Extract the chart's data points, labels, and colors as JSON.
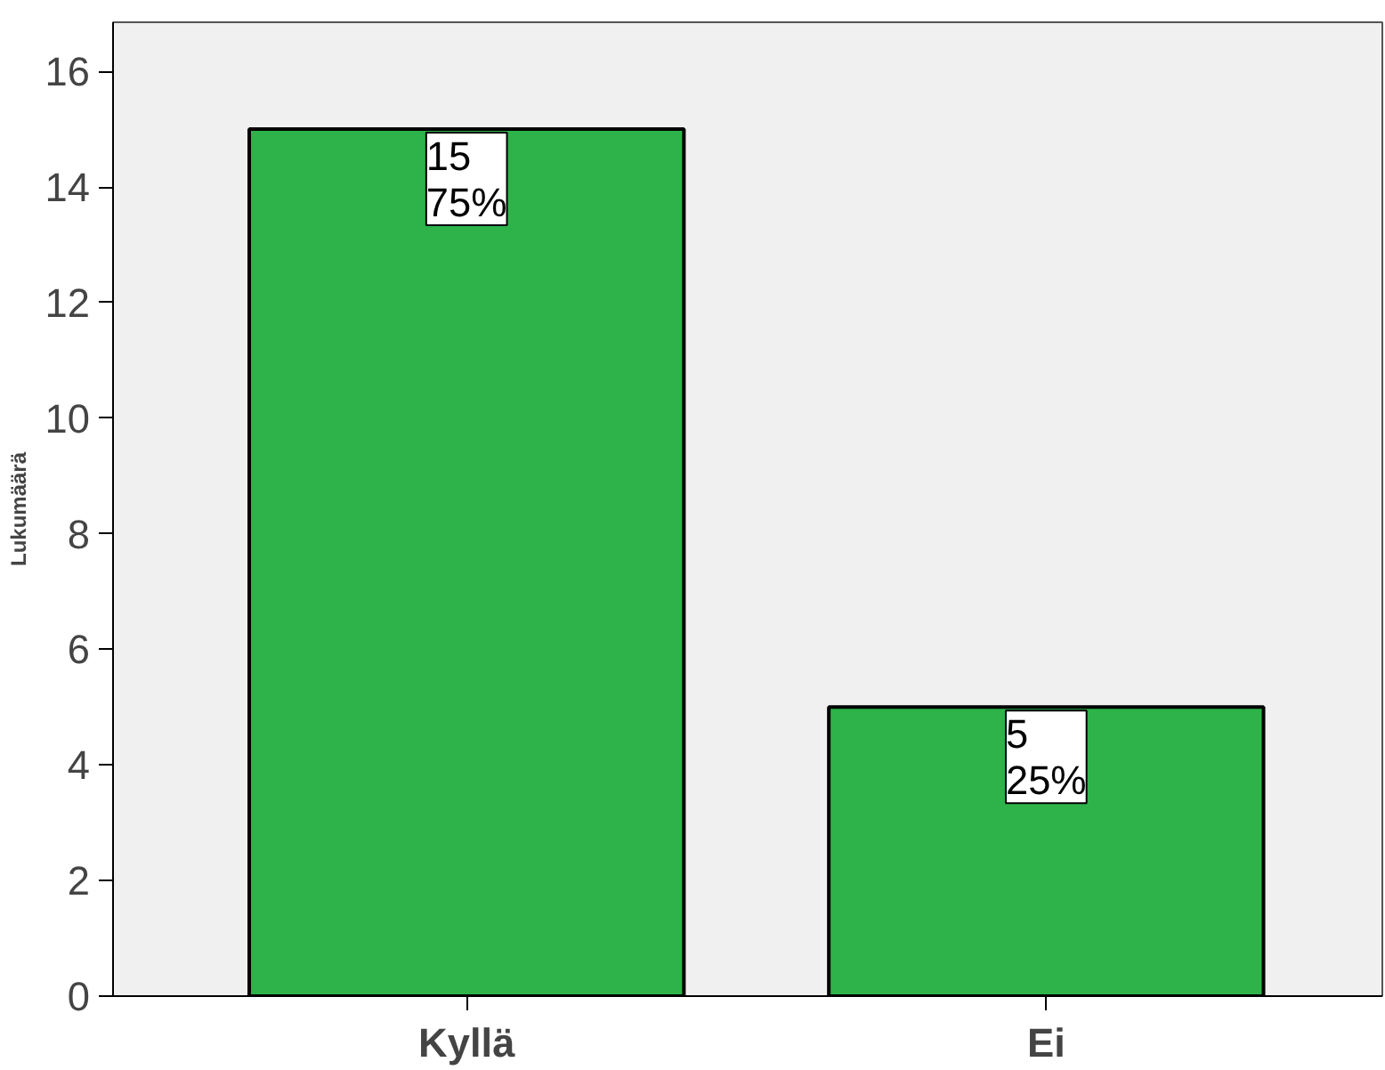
{
  "chart_data": {
    "type": "bar",
    "ylabel": "Lukumäärä",
    "categories": [
      "Kyllä",
      "Ei"
    ],
    "values": [
      15,
      5
    ],
    "color": "#2db34a",
    "value_labels": [
      "15\n75%",
      "5\n25%"
    ],
    "ylim": [
      0,
      16.85
    ],
    "yticks": [
      0,
      2,
      4,
      6,
      8,
      10,
      12,
      14,
      16
    ],
    "grid": false
  }
}
